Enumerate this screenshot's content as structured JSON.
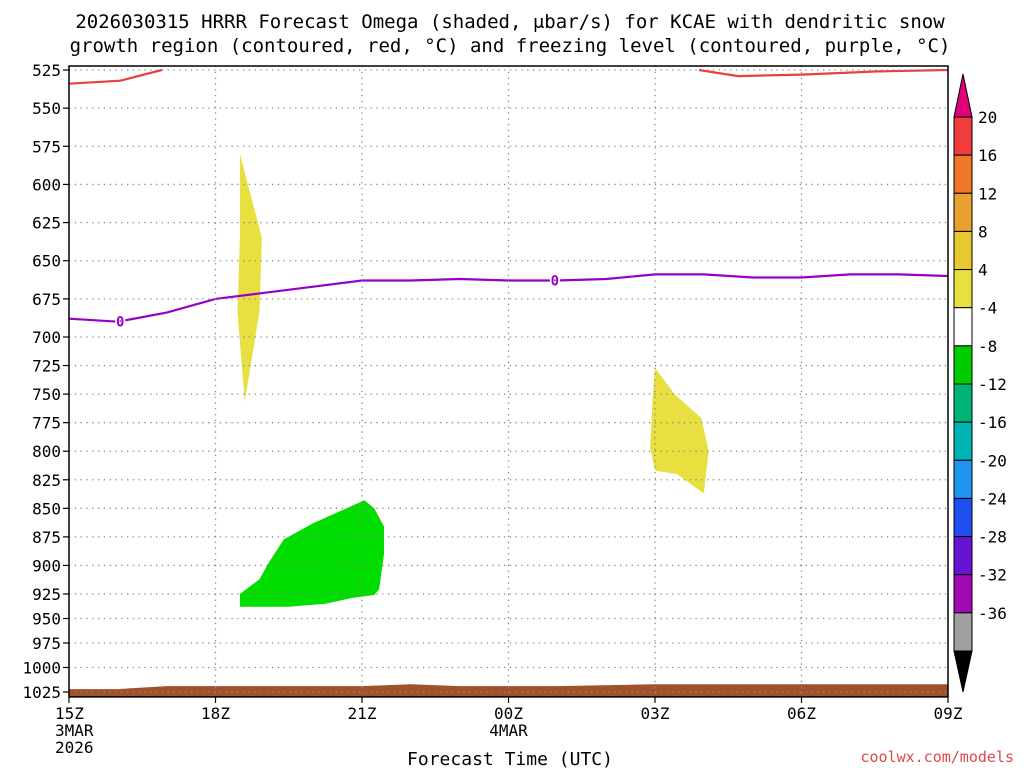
{
  "chart_data": {
    "type": "contour-timeseries",
    "title_line1": "2026030315 HRRR Forecast Omega (shaded, μbar/s) for KCAE with dendritic snow",
    "title_line2": "growth region (contoured, red, °C) and freezing level (contoured, purple, °C)",
    "xlabel": "Forecast Time (UTC)",
    "credit": "coolwx.com/models",
    "x_range_hours": [
      0,
      18
    ],
    "y_range_mb": [
      525,
      1030
    ],
    "y_ticks": [
      525,
      550,
      575,
      600,
      625,
      650,
      675,
      700,
      725,
      750,
      775,
      800,
      825,
      850,
      875,
      900,
      925,
      950,
      975,
      1000,
      1025
    ],
    "x_ticks": [
      {
        "h": 0,
        "label": "15Z",
        "sub1": "3MAR",
        "sub2": "2026"
      },
      {
        "h": 3,
        "label": "18Z",
        "sub1": "",
        "sub2": ""
      },
      {
        "h": 6,
        "label": "21Z",
        "sub1": "",
        "sub2": ""
      },
      {
        "h": 9,
        "label": "00Z",
        "sub1": "4MAR",
        "sub2": ""
      },
      {
        "h": 12,
        "label": "03Z",
        "sub1": "",
        "sub2": ""
      },
      {
        "h": 15,
        "label": "06Z",
        "sub1": "",
        "sub2": ""
      },
      {
        "h": 18,
        "label": "09Z",
        "sub1": "",
        "sub2": ""
      }
    ],
    "colorbar": {
      "labels": [
        "20",
        "16",
        "12",
        "8",
        "4",
        "-4",
        "-8",
        "-12",
        "-16",
        "-20",
        "-24",
        "-28",
        "-32",
        "-36"
      ],
      "top_arrow_color": "#e0007a",
      "bottom_arrow_color": "#000000",
      "boxes": [
        "#f03c3c",
        "#f07828",
        "#e8a030",
        "#e8c830",
        "#e8e040",
        "#ffffff",
        "#00cc00",
        "#00b478",
        "#00b4b4",
        "#1e96f0",
        "#1e50f0",
        "#6414d2",
        "#a00ab4",
        "#a0a0a0"
      ]
    },
    "freezing_level": {
      "label": "0",
      "color": "#9600c8",
      "points": [
        [
          0,
          688
        ],
        [
          1,
          690
        ],
        [
          2,
          684
        ],
        [
          3,
          675
        ],
        [
          4,
          671
        ],
        [
          5,
          667
        ],
        [
          6,
          663
        ],
        [
          7,
          663
        ],
        [
          8,
          662
        ],
        [
          9,
          663
        ],
        [
          10,
          663
        ],
        [
          11,
          662
        ],
        [
          12,
          659
        ],
        [
          13,
          659
        ],
        [
          14,
          661
        ],
        [
          15,
          661
        ],
        [
          16,
          659
        ],
        [
          17,
          659
        ],
        [
          18,
          660
        ]
      ],
      "label_at_hours": [
        1.05,
        9.95
      ]
    },
    "dgz_line": {
      "color": "#e84040",
      "segments": [
        [
          [
            0,
            534
          ],
          [
            1.05,
            532
          ],
          [
            1.9,
            525
          ]
        ],
        [
          [
            12.9,
            525
          ],
          [
            13.7,
            529
          ],
          [
            15,
            528
          ],
          [
            16.5,
            526
          ],
          [
            18,
            525
          ]
        ]
      ]
    },
    "omega_regions": [
      {
        "value": 4,
        "color": "#e8e040",
        "points": [
          [
            3.5,
            580
          ],
          [
            3.95,
            635
          ],
          [
            3.9,
            683
          ],
          [
            3.6,
            757
          ],
          [
            3.45,
            684
          ],
          [
            3.5,
            635
          ]
        ]
      },
      {
        "value": 4,
        "color": "#e8e040",
        "points": [
          [
            12,
            727
          ],
          [
            12.4,
            750
          ],
          [
            12.95,
            771
          ],
          [
            13.1,
            800
          ],
          [
            13,
            837
          ],
          [
            12.45,
            820
          ],
          [
            12,
            817
          ],
          [
            11.9,
            797
          ],
          [
            11.95,
            755
          ]
        ]
      },
      {
        "value": -4,
        "color": "#00dd00",
        "points": [
          [
            6.05,
            843
          ],
          [
            6.25,
            850
          ],
          [
            6.45,
            866
          ],
          [
            6.45,
            890
          ],
          [
            6.35,
            921
          ],
          [
            6.25,
            926
          ],
          [
            5.8,
            929
          ],
          [
            5.25,
            935
          ],
          [
            4.5,
            938
          ],
          [
            3.5,
            938
          ],
          [
            3.5,
            925
          ],
          [
            3.9,
            912
          ],
          [
            4.1,
            897
          ],
          [
            4.4,
            877
          ],
          [
            5,
            863
          ]
        ]
      }
    ],
    "terrain": {
      "color": "#a0522d",
      "points": [
        [
          0,
          1022
        ],
        [
          1,
          1022
        ],
        [
          2,
          1019
        ],
        [
          4,
          1019
        ],
        [
          6,
          1019
        ],
        [
          7,
          1017
        ],
        [
          8,
          1019
        ],
        [
          10,
          1019
        ],
        [
          12,
          1017
        ],
        [
          14,
          1017
        ],
        [
          16,
          1017
        ],
        [
          18,
          1017
        ]
      ]
    }
  }
}
